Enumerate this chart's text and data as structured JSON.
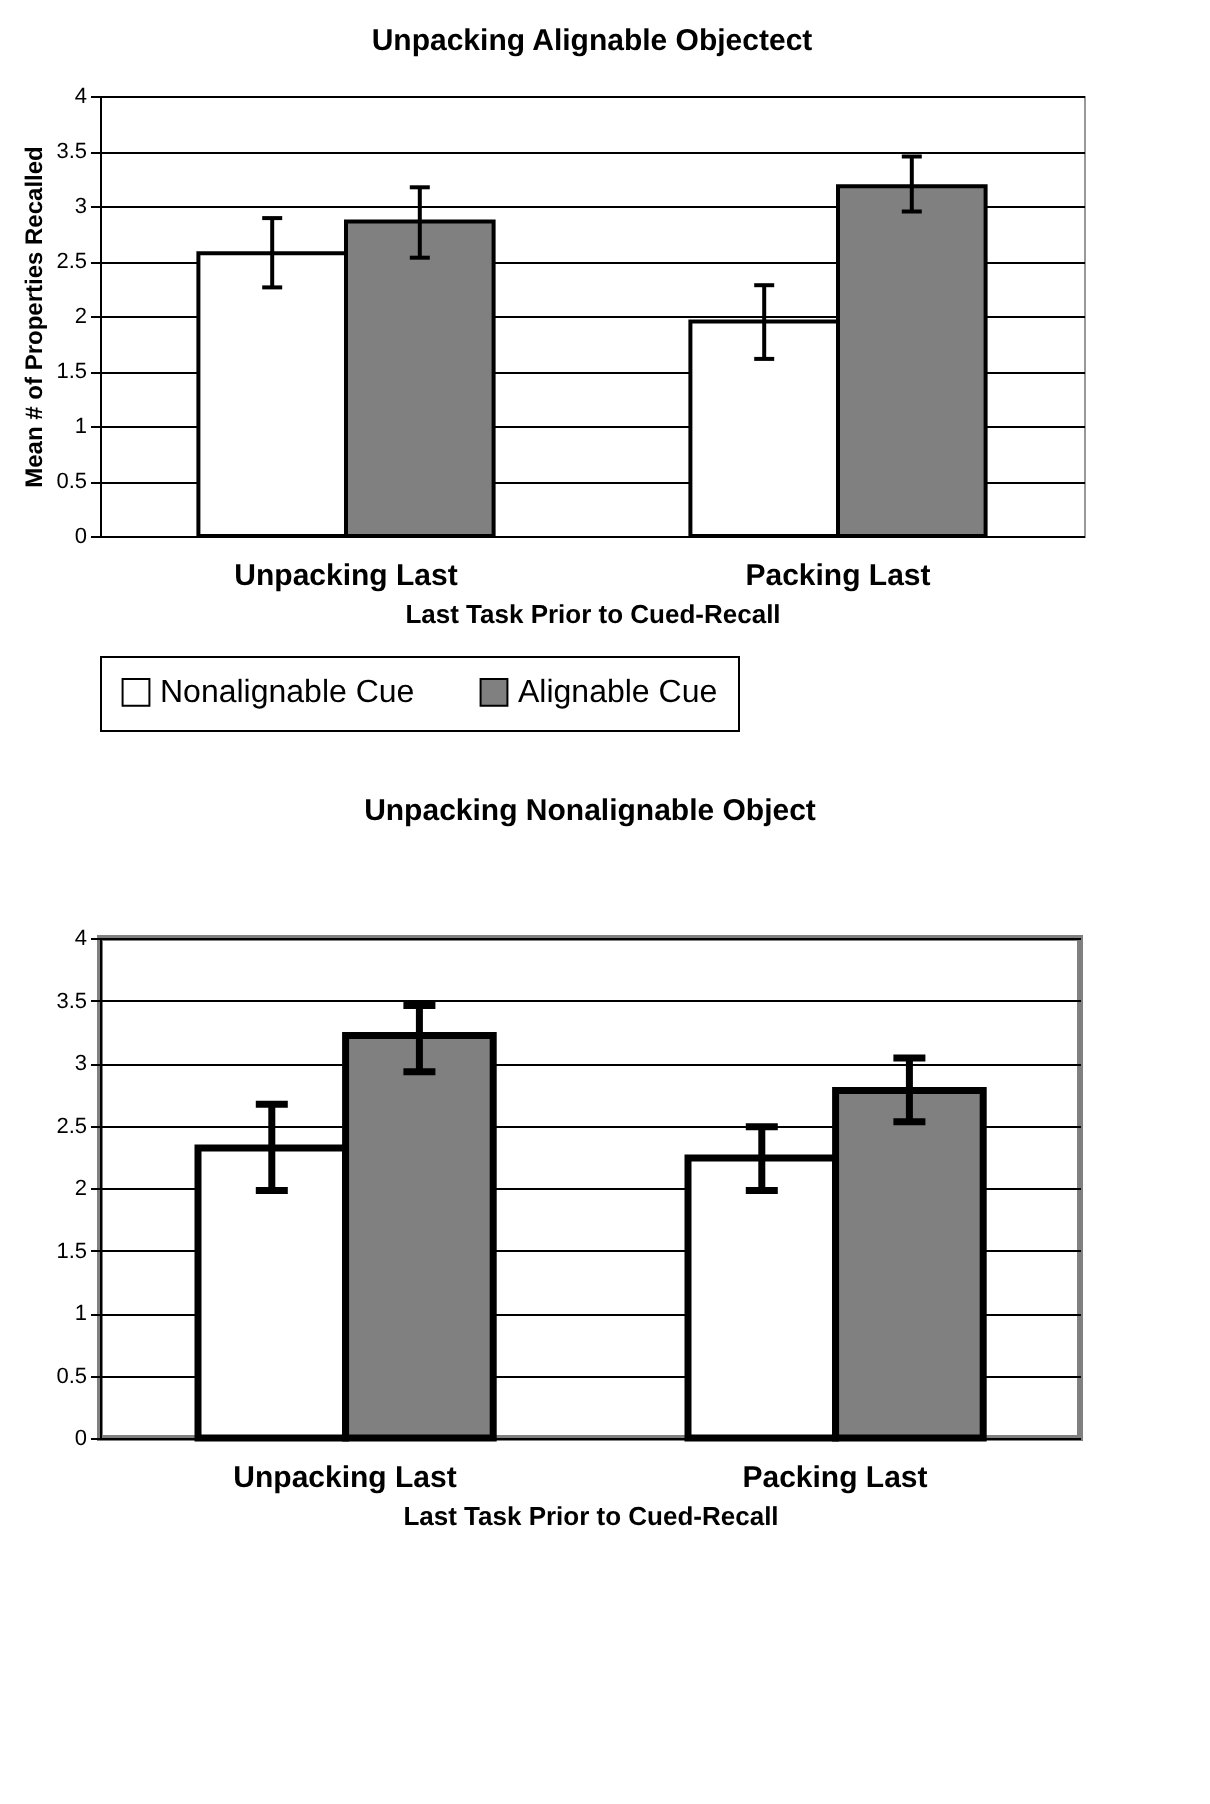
{
  "chart_data": [
    {
      "type": "bar",
      "title": "Unpacking Alignable Objectect",
      "xlabel": "Last Task Prior to Cued-Recall",
      "ylabel": "Mean # of Properties Recalled",
      "categories": [
        "Unpacking Last",
        "Packing Last"
      ],
      "series": [
        {
          "name": "Nonalignable Cue",
          "color": "#ffffff",
          "values": [
            2.57,
            1.95
          ],
          "errors": [
            [
              2.26,
              2.89
            ],
            [
              1.61,
              2.28
            ]
          ]
        },
        {
          "name": "Alignable Cue",
          "color": "#808080",
          "values": [
            2.86,
            3.18
          ],
          "errors": [
            [
              2.53,
              3.17
            ],
            [
              2.95,
              3.45
            ]
          ]
        }
      ],
      "ylim": [
        0,
        4
      ],
      "yticks": [
        0,
        0.5,
        1,
        1.5,
        2,
        2.5,
        3,
        3.5,
        4
      ],
      "grid": "y",
      "legend": "bottom"
    },
    {
      "type": "bar",
      "title": "Unpacking  Nonalignable  Object",
      "xlabel": "Last  Task  Prior  to  Cued-Recall",
      "categories": [
        "Unpacking   Last",
        "Packing   Last"
      ],
      "series": [
        {
          "color": "#ffffff",
          "values": [
            2.32,
            2.24
          ],
          "errors": [
            [
              1.98,
              2.67
            ],
            [
              1.98,
              2.49
            ]
          ]
        },
        {
          "color": "#808080",
          "values": [
            3.22,
            2.78
          ],
          "errors": [
            [
              2.93,
              3.46
            ],
            [
              2.53,
              3.04
            ]
          ]
        }
      ],
      "ylim": [
        0,
        4
      ],
      "yticks": [
        0,
        0.5,
        1,
        1.5,
        2,
        2.5,
        3,
        3.5,
        4
      ],
      "grid": "y",
      "legend": false
    }
  ]
}
